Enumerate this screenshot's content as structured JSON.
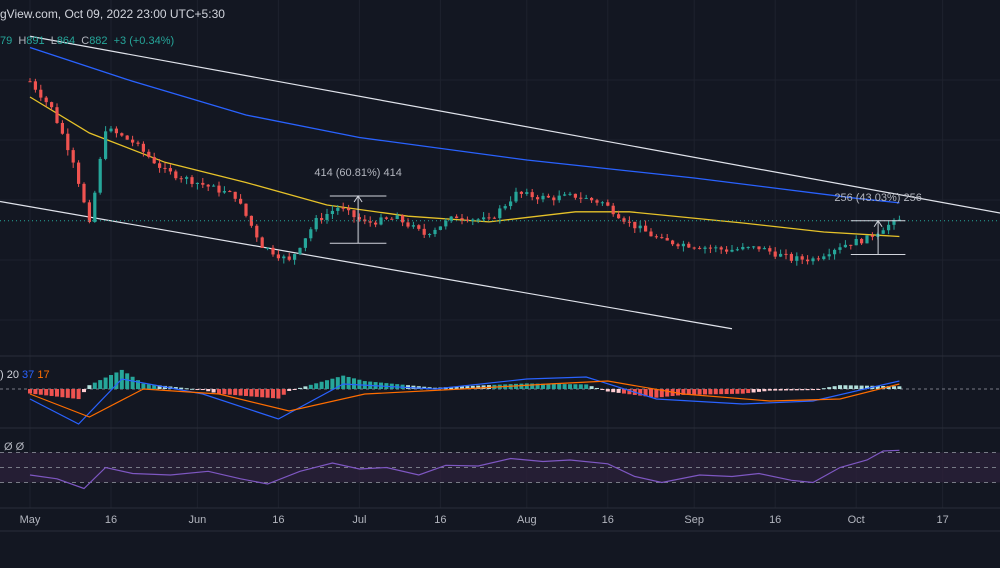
{
  "header": {
    "source_date": "gView.com, Oct 09, 2022 23:00 UTC+5:30"
  },
  "ohlc": {
    "o_value": "79",
    "h_label": "H",
    "h_value": "891",
    "l_label": "L",
    "l_value": "864",
    "c_label": "C",
    "c_value": "882",
    "change": "+3 (+0.34%)"
  },
  "macd_legend": {
    "paren": ")",
    "fast": "20",
    "slow": "37",
    "signal": "17"
  },
  "rsi_legend": {
    "v1": "Ø",
    "v2": "Ø"
  },
  "colors": {
    "background": "#131722",
    "grid": "#1e222d",
    "up": "#26a69a",
    "down": "#ef5350",
    "ma_yellow": "#e6c229",
    "ma_blue": "#2962ff",
    "macd_line": "#2962ff",
    "signal_line": "#ff6d00",
    "rsi_line": "#7e57c2",
    "rsi_band": "#2a2139"
  },
  "chart_data": {
    "type": "candlestick",
    "x_axis_labels": [
      "May",
      "16",
      "Jun",
      "16",
      "Jul",
      "16",
      "Aug",
      "16",
      "Sep",
      "16",
      "Oct",
      "17"
    ],
    "measurements": [
      {
        "label": "414 (60.81%) 414"
      },
      {
        "label": "256 (43.03%) 256"
      }
    ],
    "price_path": [
      {
        "date": "2022-05-01",
        "price": 1500
      },
      {
        "date": "2022-05-05",
        "price": 1380
      },
      {
        "date": "2022-05-09",
        "price": 1150
      },
      {
        "date": "2022-05-12",
        "price": 860
      },
      {
        "date": "2022-05-15",
        "price": 1290
      },
      {
        "date": "2022-05-20",
        "price": 1230
      },
      {
        "date": "2022-05-26",
        "price": 1100
      },
      {
        "date": "2022-06-01",
        "price": 1050
      },
      {
        "date": "2022-06-08",
        "price": 990
      },
      {
        "date": "2022-06-13",
        "price": 770
      },
      {
        "date": "2022-06-18",
        "price": 700
      },
      {
        "date": "2022-06-23",
        "price": 880
      },
      {
        "date": "2022-06-27",
        "price": 940
      },
      {
        "date": "2022-07-02",
        "price": 870
      },
      {
        "date": "2022-07-08",
        "price": 890
      },
      {
        "date": "2022-07-13",
        "price": 820
      },
      {
        "date": "2022-07-19",
        "price": 900
      },
      {
        "date": "2022-07-25",
        "price": 880
      },
      {
        "date": "2022-07-30",
        "price": 1000
      },
      {
        "date": "2022-08-05",
        "price": 980
      },
      {
        "date": "2022-08-10",
        "price": 990
      },
      {
        "date": "2022-08-15",
        "price": 960
      },
      {
        "date": "2022-08-20",
        "price": 870
      },
      {
        "date": "2022-08-26",
        "price": 790
      },
      {
        "date": "2022-09-01",
        "price": 770
      },
      {
        "date": "2022-09-07",
        "price": 750
      },
      {
        "date": "2022-09-13",
        "price": 760
      },
      {
        "date": "2022-09-19",
        "price": 710
      },
      {
        "date": "2022-09-23",
        "price": 710
      },
      {
        "date": "2022-09-28",
        "price": 770
      },
      {
        "date": "2022-10-03",
        "price": 800
      },
      {
        "date": "2022-10-06",
        "price": 850
      },
      {
        "date": "2022-10-09",
        "price": 880
      }
    ],
    "ma_slow_path": [
      {
        "date": "2022-05-01",
        "price": 1650
      },
      {
        "date": "2022-05-20",
        "price": 1500
      },
      {
        "date": "2022-06-10",
        "price": 1350
      },
      {
        "date": "2022-07-01",
        "price": 1250
      },
      {
        "date": "2022-08-01",
        "price": 1150
      },
      {
        "date": "2022-09-01",
        "price": 1070
      },
      {
        "date": "2022-10-01",
        "price": 980
      },
      {
        "date": "2022-10-09",
        "price": 960
      }
    ],
    "ma_fast_path": [
      {
        "date": "2022-05-01",
        "price": 1430
      },
      {
        "date": "2022-05-12",
        "price": 1270
      },
      {
        "date": "2022-05-26",
        "price": 1140
      },
      {
        "date": "2022-06-10",
        "price": 1050
      },
      {
        "date": "2022-06-25",
        "price": 950
      },
      {
        "date": "2022-07-10",
        "price": 900
      },
      {
        "date": "2022-07-25",
        "price": 875
      },
      {
        "date": "2022-08-10",
        "price": 920
      },
      {
        "date": "2022-08-20",
        "price": 920
      },
      {
        "date": "2022-09-10",
        "price": 870
      },
      {
        "date": "2022-09-25",
        "price": 830
      },
      {
        "date": "2022-10-09",
        "price": 810
      }
    ],
    "channel_upper": [
      {
        "date": "2022-05-01",
        "price": 1700
      },
      {
        "date": "2022-10-17",
        "price": 930
      }
    ],
    "channel_lower": [
      {
        "date": "2022-05-01",
        "price": 930
      },
      {
        "date": "2022-09-08",
        "price": 400
      }
    ],
    "rsi_path": [
      {
        "date": "2022-05-01",
        "value": 40
      },
      {
        "date": "2022-05-06",
        "value": 35
      },
      {
        "date": "2022-05-11",
        "value": 22
      },
      {
        "date": "2022-05-15",
        "value": 50
      },
      {
        "date": "2022-05-20",
        "value": 42
      },
      {
        "date": "2022-05-27",
        "value": 40
      },
      {
        "date": "2022-06-03",
        "value": 45
      },
      {
        "date": "2022-06-09",
        "value": 35
      },
      {
        "date": "2022-06-14",
        "value": 28
      },
      {
        "date": "2022-06-20",
        "value": 45
      },
      {
        "date": "2022-06-26",
        "value": 56
      },
      {
        "date": "2022-07-01",
        "value": 48
      },
      {
        "date": "2022-07-06",
        "value": 50
      },
      {
        "date": "2022-07-12",
        "value": 40
      },
      {
        "date": "2022-07-17",
        "value": 53
      },
      {
        "date": "2022-07-23",
        "value": 52
      },
      {
        "date": "2022-07-29",
        "value": 62
      },
      {
        "date": "2022-08-04",
        "value": 58
      },
      {
        "date": "2022-08-09",
        "value": 60
      },
      {
        "date": "2022-08-16",
        "value": 55
      },
      {
        "date": "2022-08-21",
        "value": 38
      },
      {
        "date": "2022-08-26",
        "value": 30
      },
      {
        "date": "2022-09-02",
        "value": 40
      },
      {
        "date": "2022-09-08",
        "value": 38
      },
      {
        "date": "2022-09-13",
        "value": 42
      },
      {
        "date": "2022-09-19",
        "value": 33
      },
      {
        "date": "2022-09-23",
        "value": 30
      },
      {
        "date": "2022-09-28",
        "value": 50
      },
      {
        "date": "2022-10-03",
        "value": 60
      },
      {
        "date": "2022-10-06",
        "value": 72
      },
      {
        "date": "2022-10-09",
        "value": 73
      }
    ],
    "rsi_bands": [
      30,
      50,
      70
    ],
    "macd_line_path": [
      {
        "date": "2022-05-01",
        "value": -10
      },
      {
        "date": "2022-05-10",
        "value": -35
      },
      {
        "date": "2022-05-18",
        "value": 10
      },
      {
        "date": "2022-06-02",
        "value": -5
      },
      {
        "date": "2022-06-16",
        "value": -30
      },
      {
        "date": "2022-06-28",
        "value": 5
      },
      {
        "date": "2022-07-15",
        "value": 0
      },
      {
        "date": "2022-08-01",
        "value": 10
      },
      {
        "date": "2022-08-12",
        "value": 12
      },
      {
        "date": "2022-08-25",
        "value": -10
      },
      {
        "date": "2022-09-10",
        "value": -15
      },
      {
        "date": "2022-09-23",
        "value": -12
      },
      {
        "date": "2022-10-09",
        "value": 8
      }
    ],
    "macd_signal_path": [
      {
        "date": "2022-05-01",
        "value": -5
      },
      {
        "date": "2022-05-12",
        "value": -28
      },
      {
        "date": "2022-05-22",
        "value": 0
      },
      {
        "date": "2022-06-05",
        "value": -5
      },
      {
        "date": "2022-06-18",
        "value": -22
      },
      {
        "date": "2022-07-02",
        "value": -5
      },
      {
        "date": "2022-07-20",
        "value": 0
      },
      {
        "date": "2022-08-05",
        "value": 5
      },
      {
        "date": "2022-08-16",
        "value": 8
      },
      {
        "date": "2022-08-30",
        "value": -5
      },
      {
        "date": "2022-09-15",
        "value": -12
      },
      {
        "date": "2022-09-28",
        "value": -10
      },
      {
        "date": "2022-10-09",
        "value": 5
      }
    ]
  }
}
